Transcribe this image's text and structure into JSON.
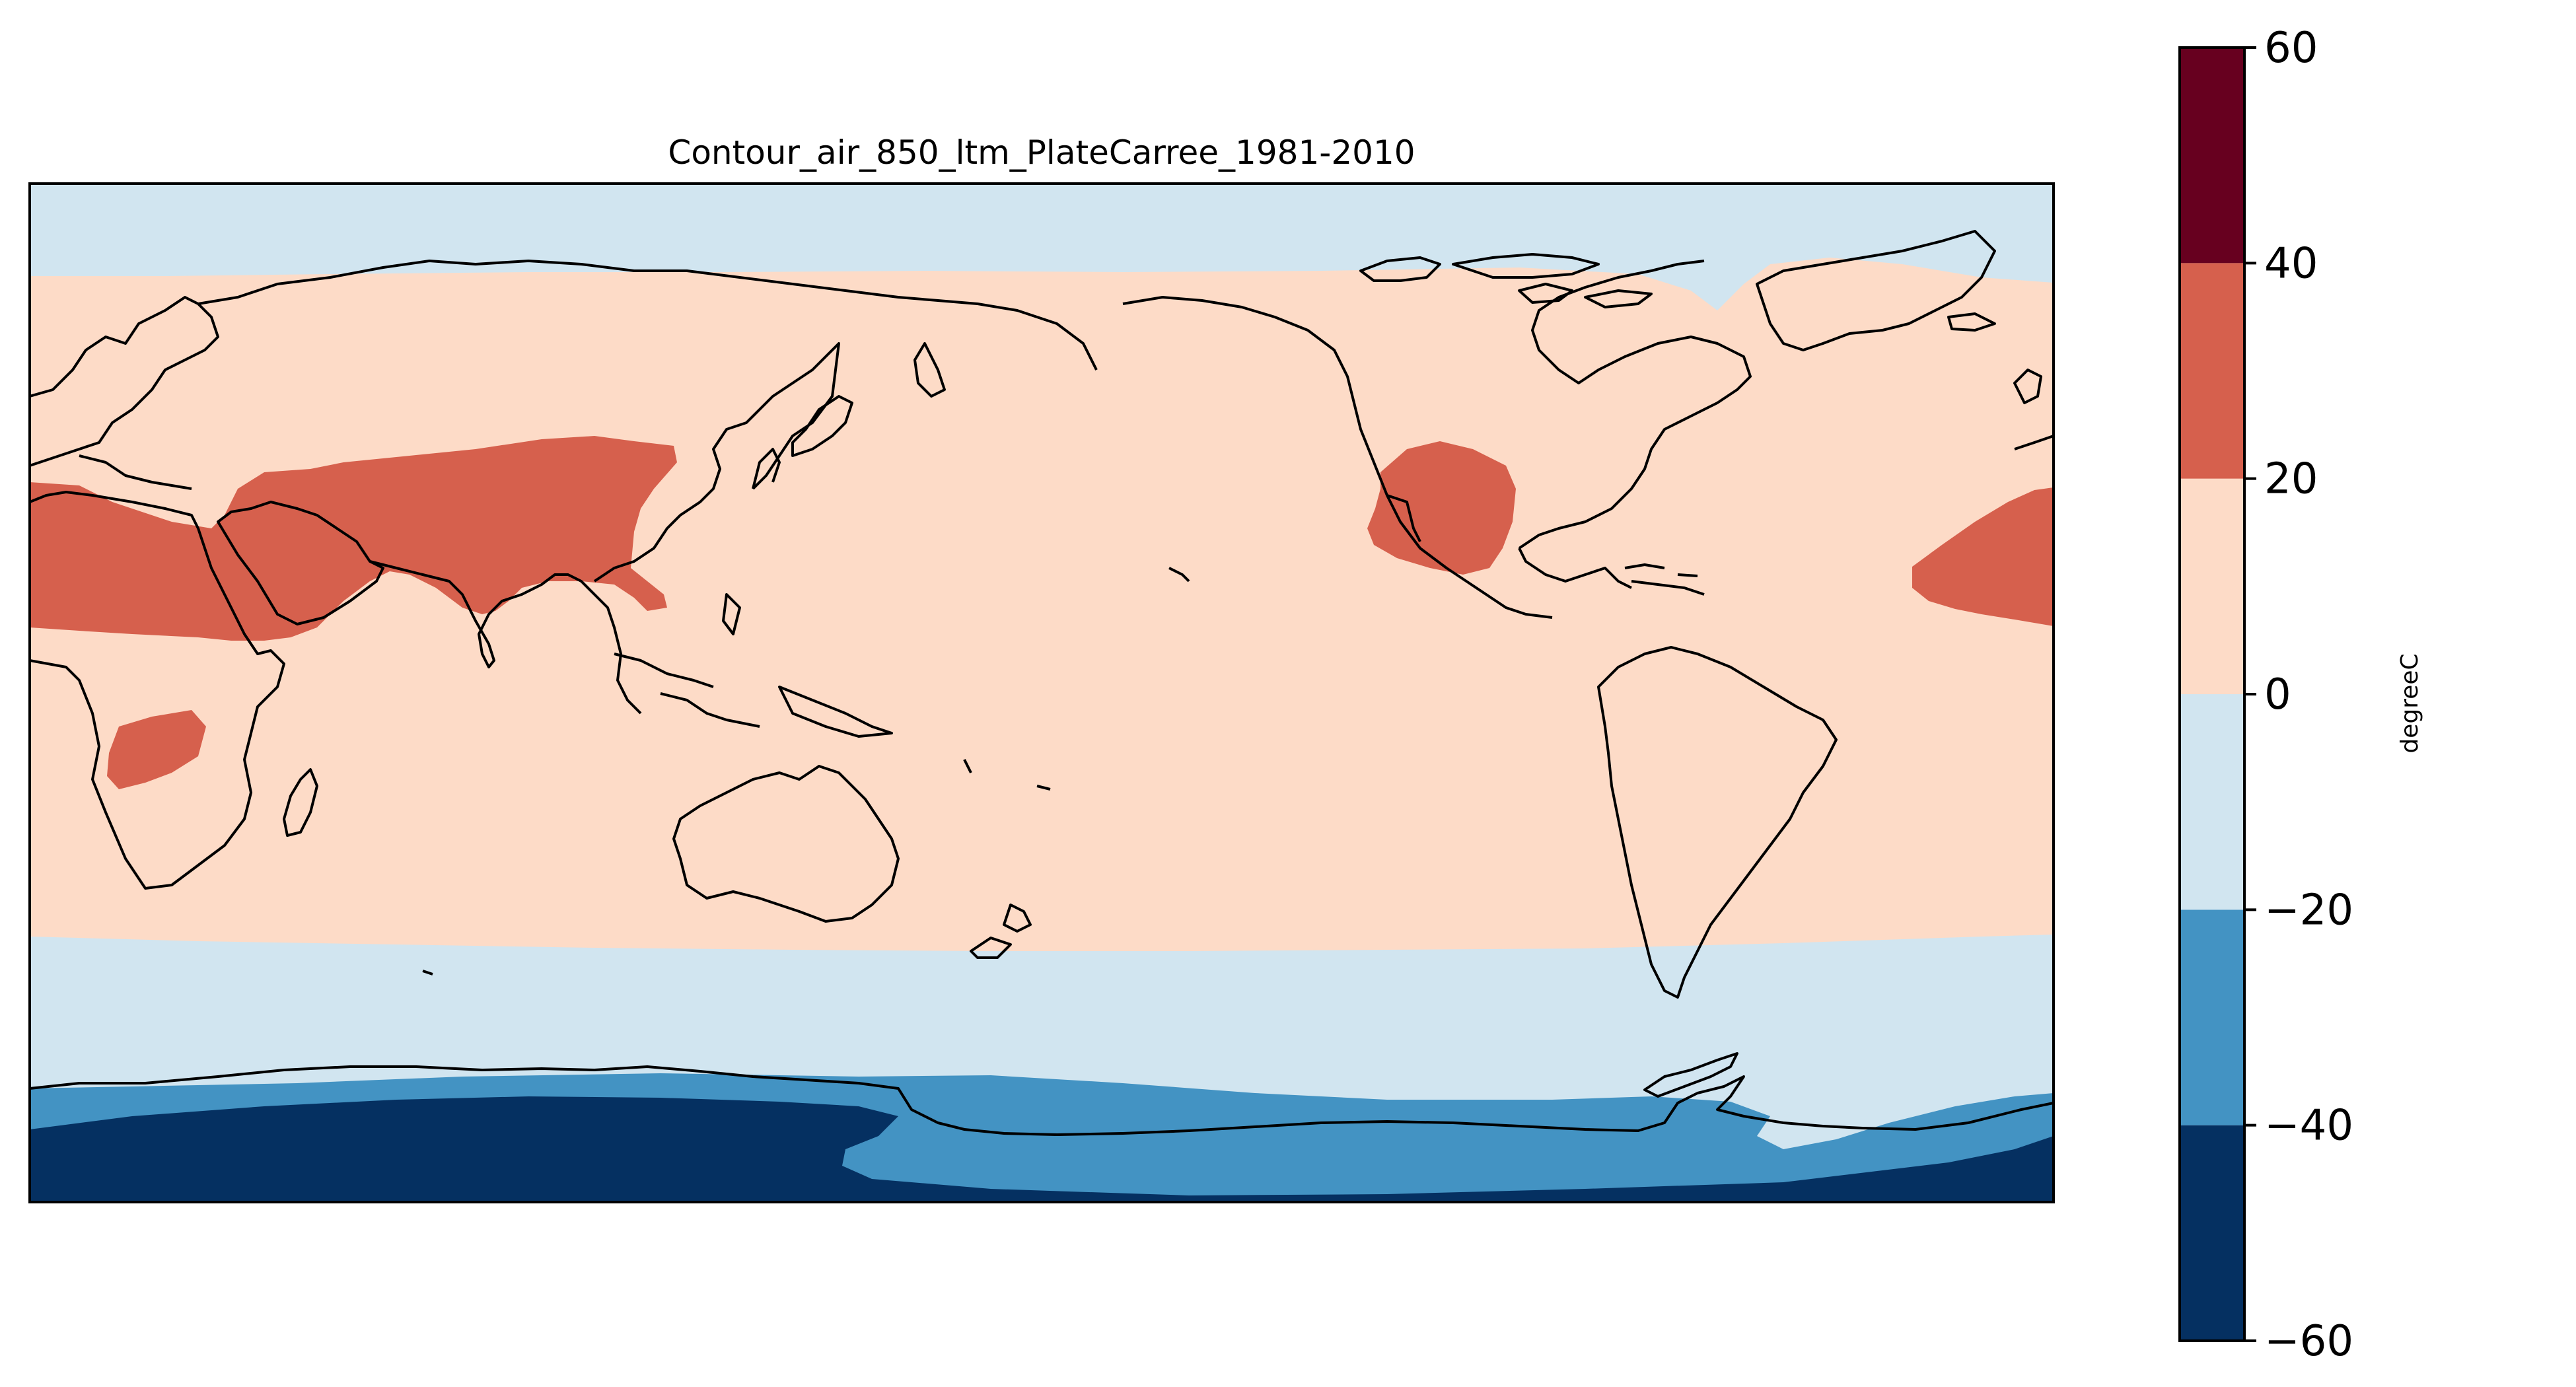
{
  "map": {
    "title": "Contour_air_850_ltm_PlateCarree_1981-2010",
    "projection": "PlateCarree",
    "central_longitude": 180,
    "variable": "air",
    "level_hPa": 850,
    "period": "1981-2010"
  },
  "colorbar": {
    "label": "degreeC",
    "min": -60,
    "max": 60,
    "ticks": [
      {
        "value": 60,
        "label": "60"
      },
      {
        "value": 40,
        "label": "40"
      },
      {
        "value": 20,
        "label": "20"
      },
      {
        "value": 0,
        "label": "0"
      },
      {
        "value": -20,
        "label": "−20"
      },
      {
        "value": -40,
        "label": "−40"
      },
      {
        "value": -60,
        "label": "−60"
      }
    ],
    "bins": [
      {
        "low": -60,
        "high": -40,
        "color": "#053061"
      },
      {
        "low": -40,
        "high": -20,
        "color": "#4393c3"
      },
      {
        "low": -20,
        "high": 0,
        "color": "#d1e5f0"
      },
      {
        "low": 0,
        "high": 20,
        "color": "#fddbc7"
      },
      {
        "low": 20,
        "high": 40,
        "color": "#d6604d"
      },
      {
        "low": 40,
        "high": 60,
        "color": "#67001f"
      }
    ]
  }
}
